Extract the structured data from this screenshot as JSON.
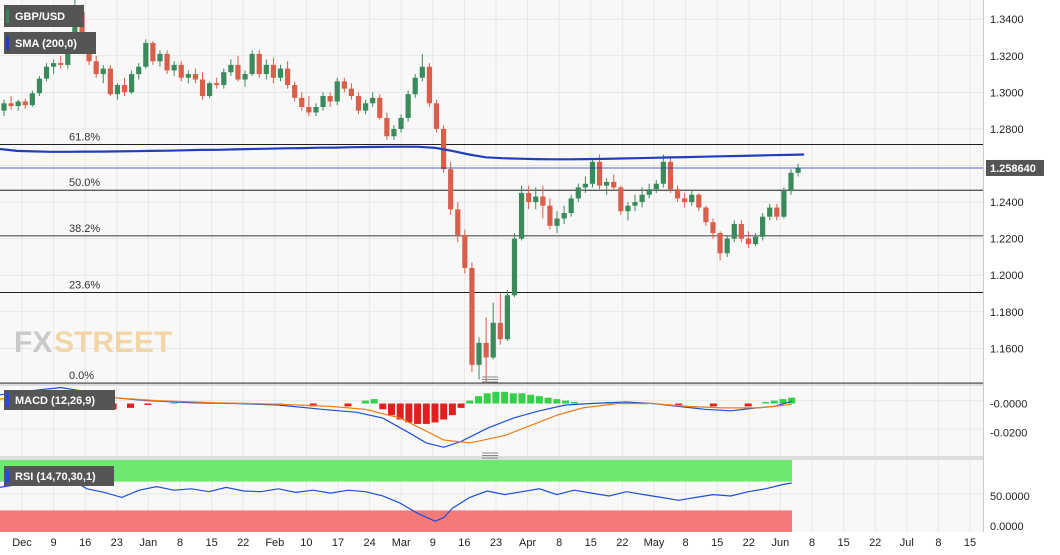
{
  "main": {
    "symbol": "GBP/USD",
    "sma_label": "SMA (200,0)",
    "current_price_label": "1.258640",
    "watermark_fx": "FX",
    "watermark_street": "STREET",
    "colors": {
      "up": "#3a8a5c",
      "down": "#d95f4b",
      "sma": "#1f3fbf",
      "price_line": "#2233aa",
      "tag_bg": "#555555",
      "fib_line": "#000000"
    }
  },
  "macd": {
    "label": "MACD (12,26,9)",
    "tick_labels": [
      "-0.0000",
      "-0.0200"
    ],
    "ticks": [
      0,
      -0.02
    ],
    "colors": {
      "macd": "#1f4fd8",
      "signal": "#f07c1a",
      "hist_pos": "#34d04a",
      "hist_neg": "#e02020"
    }
  },
  "rsi": {
    "label": "RSI (14,70,30,1)",
    "tick_labels": [
      "50.0000",
      "0.0000"
    ],
    "ticks": [
      50,
      0
    ],
    "colors": {
      "line": "#1f4fd8",
      "overbought": "#6ee86e",
      "oversold": "#f47a7a"
    }
  },
  "chart_data": {
    "type": "candlestick",
    "title": "GBP/USD",
    "y_tick_labels": [
      "1.3400",
      "1.3200",
      "1.3000",
      "1.2800",
      "1.2600",
      "1.2400",
      "1.2200",
      "1.2000",
      "1.1800",
      "1.1600"
    ],
    "y_ticks": [
      1.34,
      1.32,
      1.3,
      1.28,
      1.26,
      1.24,
      1.22,
      1.2,
      1.18,
      1.16
    ],
    "ylim": [
      1.1405,
      1.3505
    ],
    "x_tick_labels": [
      "Dec",
      "9",
      "16",
      "23",
      "Jan",
      "8",
      "15",
      "22",
      "Feb",
      "10",
      "17",
      "24",
      "Mar",
      "9",
      "16",
      "23",
      "Apr",
      "8",
      "15",
      "22",
      "May",
      "8",
      "15",
      "22",
      "Jun",
      "8",
      "15",
      "22",
      "Jul",
      "8",
      "15"
    ],
    "fib_levels": [
      {
        "label": "61.8%",
        "value": 1.2715
      },
      {
        "label": "50.0%",
        "value": 1.2465
      },
      {
        "label": "38.2%",
        "value": 1.2215
      },
      {
        "label": "23.6%",
        "value": 1.1905
      },
      {
        "label": "0.0%",
        "value": 1.141
      }
    ],
    "current_price": 1.25864,
    "candles": [
      [
        1.29,
        1.296,
        1.287,
        1.294
      ],
      [
        1.294,
        1.298,
        1.2905,
        1.2925
      ],
      [
        1.2925,
        1.296,
        1.29,
        1.295
      ],
      [
        1.295,
        1.2965,
        1.291,
        1.293
      ],
      [
        1.293,
        1.301,
        1.292,
        1.2995
      ],
      [
        1.2995,
        1.309,
        1.298,
        1.3075
      ],
      [
        1.3075,
        1.316,
        1.306,
        1.314
      ],
      [
        1.314,
        1.318,
        1.31,
        1.316
      ],
      [
        1.316,
        1.32,
        1.313,
        1.315
      ],
      [
        1.315,
        1.327,
        1.313,
        1.325
      ],
      [
        1.325,
        1.3515,
        1.321,
        1.344
      ],
      [
        1.344,
        1.348,
        1.325,
        1.328
      ],
      [
        1.328,
        1.331,
        1.315,
        1.317
      ],
      [
        1.317,
        1.32,
        1.308,
        1.31
      ],
      [
        1.31,
        1.315,
        1.305,
        1.313
      ],
      [
        1.313,
        1.315,
        1.298,
        1.299
      ],
      [
        1.299,
        1.305,
        1.296,
        1.304
      ],
      [
        1.304,
        1.308,
        1.298,
        1.3
      ],
      [
        1.3,
        1.312,
        1.299,
        1.31
      ],
      [
        1.31,
        1.316,
        1.307,
        1.314
      ],
      [
        1.314,
        1.329,
        1.313,
        1.327
      ],
      [
        1.327,
        1.328,
        1.315,
        1.317
      ],
      [
        1.317,
        1.323,
        1.314,
        1.321
      ],
      [
        1.321,
        1.323,
        1.31,
        1.312
      ],
      [
        1.312,
        1.317,
        1.309,
        1.315
      ],
      [
        1.315,
        1.317,
        1.306,
        1.308
      ],
      [
        1.308,
        1.312,
        1.305,
        1.31
      ],
      [
        1.31,
        1.313,
        1.305,
        1.307
      ],
      [
        1.307,
        1.311,
        1.296,
        1.298
      ],
      [
        1.298,
        1.306,
        1.297,
        1.305
      ],
      [
        1.305,
        1.308,
        1.302,
        1.304
      ],
      [
        1.304,
        1.313,
        1.302,
        1.311
      ],
      [
        1.311,
        1.318,
        1.309,
        1.315
      ],
      [
        1.315,
        1.32,
        1.306,
        1.307
      ],
      [
        1.307,
        1.312,
        1.303,
        1.31
      ],
      [
        1.31,
        1.323,
        1.309,
        1.321
      ],
      [
        1.321,
        1.323,
        1.308,
        1.31
      ],
      [
        1.31,
        1.318,
        1.307,
        1.315
      ],
      [
        1.315,
        1.319,
        1.305,
        1.308
      ],
      [
        1.308,
        1.315,
        1.306,
        1.313
      ],
      [
        1.313,
        1.317,
        1.302,
        1.304
      ],
      [
        1.304,
        1.306,
        1.295,
        1.297
      ],
      [
        1.297,
        1.3,
        1.29,
        1.292
      ],
      [
        1.292,
        1.298,
        1.287,
        1.289
      ],
      [
        1.289,
        1.294,
        1.287,
        1.292
      ],
      [
        1.292,
        1.3,
        1.29,
        1.298
      ],
      [
        1.298,
        1.3,
        1.292,
        1.295
      ],
      [
        1.295,
        1.308,
        1.293,
        1.306
      ],
      [
        1.306,
        1.308,
        1.3,
        1.302
      ],
      [
        1.302,
        1.305,
        1.296,
        1.298
      ],
      [
        1.298,
        1.3,
        1.288,
        1.29
      ],
      [
        1.29,
        1.296,
        1.288,
        1.294
      ],
      [
        1.294,
        1.3,
        1.292,
        1.297
      ],
      [
        1.297,
        1.299,
        1.285,
        1.286
      ],
      [
        1.286,
        1.289,
        1.274,
        1.276
      ],
      [
        1.276,
        1.282,
        1.274,
        1.28
      ],
      [
        1.28,
        1.288,
        1.278,
        1.286
      ],
      [
        1.286,
        1.301,
        1.284,
        1.299
      ],
      [
        1.299,
        1.31,
        1.297,
        1.308
      ],
      [
        1.308,
        1.321,
        1.306,
        1.314
      ],
      [
        1.314,
        1.316,
        1.292,
        1.294
      ],
      [
        1.294,
        1.296,
        1.278,
        1.28
      ],
      [
        1.28,
        1.282,
        1.256,
        1.258
      ],
      [
        1.258,
        1.262,
        1.233,
        1.236
      ],
      [
        1.236,
        1.24,
        1.218,
        1.222
      ],
      [
        1.222,
        1.225,
        1.201,
        1.204
      ],
      [
        1.204,
        1.207,
        1.147,
        1.151
      ],
      [
        1.151,
        1.166,
        1.143,
        1.163
      ],
      [
        1.163,
        1.177,
        1.141,
        1.155
      ],
      [
        1.155,
        1.185,
        1.154,
        1.174
      ],
      [
        1.174,
        1.19,
        1.162,
        1.165
      ],
      [
        1.165,
        1.192,
        1.164,
        1.189
      ],
      [
        1.189,
        1.223,
        1.188,
        1.22
      ],
      [
        1.22,
        1.249,
        1.219,
        1.245
      ],
      [
        1.245,
        1.249,
        1.236,
        1.24
      ],
      [
        1.24,
        1.248,
        1.236,
        1.243
      ],
      [
        1.243,
        1.249,
        1.231,
        1.238
      ],
      [
        1.238,
        1.242,
        1.225,
        1.227
      ],
      [
        1.227,
        1.235,
        1.223,
        1.231
      ],
      [
        1.231,
        1.238,
        1.228,
        1.234
      ],
      [
        1.234,
        1.244,
        1.232,
        1.242
      ],
      [
        1.242,
        1.25,
        1.24,
        1.248
      ],
      [
        1.248,
        1.254,
        1.245,
        1.25
      ],
      [
        1.25,
        1.264,
        1.248,
        1.262
      ],
      [
        1.262,
        1.266,
        1.247,
        1.249
      ],
      [
        1.249,
        1.253,
        1.244,
        1.251
      ],
      [
        1.251,
        1.255,
        1.246,
        1.248
      ],
      [
        1.248,
        1.249,
        1.233,
        1.235
      ],
      [
        1.235,
        1.24,
        1.23,
        1.238
      ],
      [
        1.238,
        1.244,
        1.235,
        1.24
      ],
      [
        1.24,
        1.248,
        1.237,
        1.244
      ],
      [
        1.244,
        1.25,
        1.242,
        1.247
      ],
      [
        1.247,
        1.252,
        1.245,
        1.25
      ],
      [
        1.25,
        1.266,
        1.248,
        1.262
      ],
      [
        1.262,
        1.264,
        1.245,
        1.247
      ],
      [
        1.247,
        1.249,
        1.24,
        1.242
      ],
      [
        1.242,
        1.245,
        1.237,
        1.24
      ],
      [
        1.24,
        1.246,
        1.238,
        1.244
      ],
      [
        1.244,
        1.245,
        1.235,
        1.237
      ],
      [
        1.237,
        1.238,
        1.227,
        1.229
      ],
      [
        1.229,
        1.231,
        1.22,
        1.223
      ],
      [
        1.223,
        1.224,
        1.208,
        1.212
      ],
      [
        1.212,
        1.222,
        1.21,
        1.22
      ],
      [
        1.22,
        1.23,
        1.218,
        1.228
      ],
      [
        1.228,
        1.23,
        1.218,
        1.22
      ],
      [
        1.22,
        1.224,
        1.215,
        1.217
      ],
      [
        1.217,
        1.223,
        1.216,
        1.221
      ],
      [
        1.221,
        1.234,
        1.219,
        1.232
      ],
      [
        1.232,
        1.239,
        1.23,
        1.237
      ],
      [
        1.237,
        1.239,
        1.23,
        1.232
      ],
      [
        1.232,
        1.248,
        1.231,
        1.246
      ],
      [
        1.246,
        1.258,
        1.244,
        1.256
      ],
      [
        1.256,
        1.261,
        1.254,
        1.2586
      ]
    ],
    "sma_200": [
      1.269,
      1.268,
      1.2677,
      1.2675,
      1.2675,
      1.2676,
      1.2676,
      1.2677,
      1.2678,
      1.268,
      1.2681,
      1.2683,
      1.2685,
      1.2686,
      1.2688,
      1.269,
      1.2692,
      1.2694,
      1.2695,
      1.2697,
      1.2698,
      1.27,
      1.2701,
      1.2702,
      1.2703,
      1.2702,
      1.2696,
      1.268,
      1.266,
      1.2645,
      1.264,
      1.2637,
      1.2635,
      1.2634,
      1.2634,
      1.2635,
      1.2636,
      1.2638,
      1.264,
      1.2642,
      1.2644,
      1.2646,
      1.2648,
      1.265,
      1.2652,
      1.2654,
      1.2656,
      1.2658,
      1.266
    ],
    "macd": {
      "xlim": [
        0,
        100
      ],
      "ylim": [
        -0.036,
        0.012
      ],
      "macd_line": [
        [
          0,
          0.006
        ],
        [
          4,
          0.009
        ],
        [
          7,
          0.011
        ],
        [
          10,
          0.008
        ],
        [
          13,
          0.004
        ],
        [
          17,
          0.002
        ],
        [
          22,
          0.0005
        ],
        [
          27,
          0.0
        ],
        [
          32,
          -0.001
        ],
        [
          37,
          -0.004
        ],
        [
          41,
          -0.006
        ],
        [
          44,
          -0.01
        ],
        [
          47,
          -0.02
        ],
        [
          49,
          -0.027
        ],
        [
          51,
          -0.03
        ],
        [
          53,
          -0.026
        ],
        [
          56,
          -0.017
        ],
        [
          59,
          -0.01
        ],
        [
          62,
          -0.005
        ],
        [
          65,
          -0.001
        ],
        [
          68,
          0.0
        ],
        [
          72,
          0.001
        ],
        [
          75,
          0.0
        ],
        [
          78,
          -0.002
        ],
        [
          81,
          -0.004
        ],
        [
          84,
          -0.005
        ],
        [
          87,
          -0.003
        ],
        [
          89,
          -0.002
        ],
        [
          91,
          0.0015
        ]
      ],
      "signal_line": [
        [
          0,
          0.003
        ],
        [
          5,
          0.006
        ],
        [
          9,
          0.007
        ],
        [
          13,
          0.004
        ],
        [
          18,
          0.002
        ],
        [
          25,
          0.0005
        ],
        [
          32,
          -0.0005
        ],
        [
          38,
          -0.002
        ],
        [
          42,
          -0.004
        ],
        [
          46,
          -0.01
        ],
        [
          49,
          -0.019
        ],
        [
          51,
          -0.025
        ],
        [
          54,
          -0.027
        ],
        [
          58,
          -0.022
        ],
        [
          61,
          -0.015
        ],
        [
          64,
          -0.008
        ],
        [
          67,
          -0.003
        ],
        [
          71,
          0.0
        ],
        [
          75,
          0.0
        ],
        [
          79,
          -0.002
        ],
        [
          83,
          -0.003
        ],
        [
          87,
          -0.003
        ],
        [
          89,
          -0.002
        ],
        [
          91,
          -0.0005
        ]
      ],
      "histogram": [
        [
          1,
          0.002
        ],
        [
          3,
          0.004
        ],
        [
          5,
          0.005
        ],
        [
          7,
          0.004
        ],
        [
          9,
          0.002
        ],
        [
          11,
          -0.002
        ],
        [
          13,
          -0.004
        ],
        [
          15,
          -0.003
        ],
        [
          17,
          -0.001
        ],
        [
          20,
          0.0005
        ],
        [
          24,
          0.001
        ],
        [
          28,
          0.0005
        ],
        [
          32,
          -0.0005
        ],
        [
          36,
          -0.002
        ],
        [
          40,
          -0.002
        ],
        [
          42,
          0.002
        ],
        [
          43,
          0.003
        ],
        [
          44,
          -0.004
        ],
        [
          45,
          -0.008
        ],
        [
          46,
          -0.011
        ],
        [
          47,
          -0.013
        ],
        [
          48,
          -0.014
        ],
        [
          49,
          -0.014
        ],
        [
          50,
          -0.013
        ],
        [
          51,
          -0.011
        ],
        [
          52,
          -0.008
        ],
        [
          53,
          -0.003
        ],
        [
          54,
          0.002
        ],
        [
          55,
          0.005
        ],
        [
          56,
          0.007
        ],
        [
          57,
          0.008
        ],
        [
          58,
          0.008
        ],
        [
          59,
          0.007
        ],
        [
          60,
          0.007
        ],
        [
          61,
          0.006
        ],
        [
          62,
          0.005
        ],
        [
          63,
          0.004
        ],
        [
          64,
          0.003
        ],
        [
          65,
          0.002
        ],
        [
          66,
          0.001
        ],
        [
          70,
          0.001
        ],
        [
          74,
          0.0
        ],
        [
          78,
          -0.001
        ],
        [
          82,
          -0.002
        ],
        [
          86,
          -0.002
        ],
        [
          88,
          0.001
        ],
        [
          89,
          0.002
        ],
        [
          90,
          0.003
        ],
        [
          91,
          0.004
        ]
      ]
    },
    "rsi_data": {
      "xlim": [
        0,
        100
      ],
      "ylim": [
        0,
        100
      ],
      "overbought": 70,
      "oversold": 30,
      "line": [
        [
          0,
          62
        ],
        [
          2,
          66
        ],
        [
          4,
          71
        ],
        [
          6,
          68
        ],
        [
          8,
          74
        ],
        [
          10,
          60
        ],
        [
          12,
          55
        ],
        [
          14,
          48
        ],
        [
          16,
          58
        ],
        [
          18,
          63
        ],
        [
          20,
          58
        ],
        [
          22,
          60
        ],
        [
          24,
          56
        ],
        [
          26,
          62
        ],
        [
          28,
          57
        ],
        [
          30,
          56
        ],
        [
          32,
          60
        ],
        [
          34,
          55
        ],
        [
          36,
          58
        ],
        [
          38,
          54
        ],
        [
          40,
          58
        ],
        [
          42,
          56
        ],
        [
          44,
          50
        ],
        [
          46,
          40
        ],
        [
          48,
          26
        ],
        [
          50,
          15
        ],
        [
          51,
          20
        ],
        [
          52,
          33
        ],
        [
          54,
          48
        ],
        [
          56,
          57
        ],
        [
          58,
          52
        ],
        [
          60,
          56
        ],
        [
          62,
          60
        ],
        [
          64,
          52
        ],
        [
          66,
          58
        ],
        [
          68,
          54
        ],
        [
          70,
          50
        ],
        [
          72,
          56
        ],
        [
          74,
          52
        ],
        [
          76,
          48
        ],
        [
          78,
          44
        ],
        [
          80,
          48
        ],
        [
          82,
          52
        ],
        [
          84,
          50
        ],
        [
          86,
          56
        ],
        [
          88,
          60
        ],
        [
          90,
          66
        ],
        [
          91,
          68
        ]
      ]
    }
  }
}
